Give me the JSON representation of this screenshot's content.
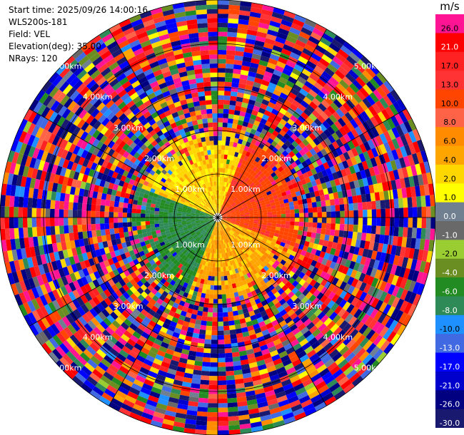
{
  "header": {
    "start_time": "Start time: 2025/09/26 14:00:16",
    "instrument": "WLS200s-181",
    "field": "Field: VEL",
    "elevation": "Elevation(deg): 35.00",
    "nrays": "NRays: 120"
  },
  "colorbar": {
    "unit": "m/s",
    "labels": [
      "26.0",
      "21.0",
      "17.0",
      "13.0",
      "10.0",
      "8.0",
      "6.0",
      "4.0",
      "2.0",
      "1.0",
      "0.0",
      "-1.0",
      "-2.0",
      "-4.0",
      "-6.0",
      "-8.0",
      "-10.0",
      "-13.0",
      "-17.0",
      "-21.0",
      "-26.0",
      "-30.0"
    ],
    "colors": [
      "#ff1493",
      "#ff0000",
      "#ff2222",
      "#ff3333",
      "#ff4500",
      "#ff6347",
      "#ff8c00",
      "#ffa500",
      "#ffd700",
      "#ffff00",
      "#708090",
      "#696969",
      "#9acd32",
      "#6b8e23",
      "#228b22",
      "#2e8b57",
      "#1e90ff",
      "#4169e1",
      "#0000ff",
      "#0000cd",
      "#000080",
      "#191970"
    ]
  },
  "chart_data": {
    "type": "heatmap",
    "projection": "polar",
    "field": "VEL",
    "elevation_deg": 35.0,
    "n_rays": 120,
    "unit": "m/s",
    "range_rings_km": [
      1.0,
      2.0,
      3.0,
      4.0,
      5.0
    ],
    "ring_labels": [
      "1.00km",
      "2.00km",
      "3.00km",
      "4.00km",
      "5.00km"
    ],
    "azimuth_lines_deg": [
      0,
      30,
      60,
      90,
      120,
      150,
      180,
      210,
      240,
      270,
      300,
      330
    ],
    "value_range": [
      -30.0,
      26.0
    ],
    "pattern_summary": [
      {
        "sector_deg": [
          20,
          110
        ],
        "range_km": [
          0.0,
          2.0
        ],
        "velocity": 12.0
      },
      {
        "sector_deg": [
          110,
          200
        ],
        "range_km": [
          0.0,
          2.0
        ],
        "velocity": 5.0
      },
      {
        "sector_deg": [
          200,
          290
        ],
        "range_km": [
          0.0,
          2.0
        ],
        "velocity": -6.0
      },
      {
        "sector_deg": [
          290,
          380
        ],
        "range_km": [
          0.0,
          2.0
        ],
        "velocity": 3.0
      }
    ]
  }
}
